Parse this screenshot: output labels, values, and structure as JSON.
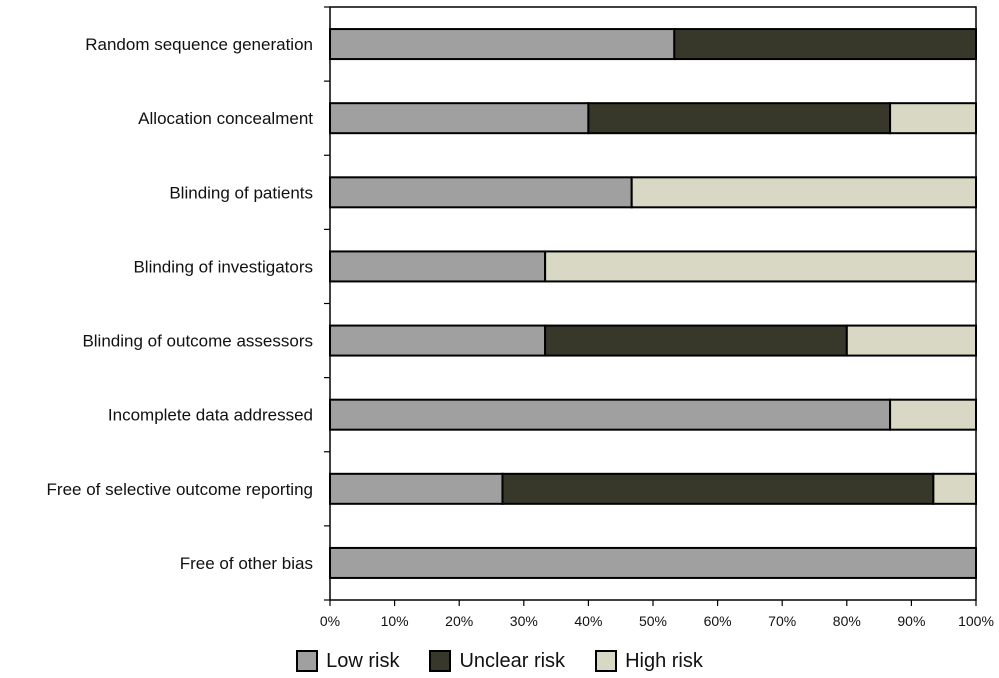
{
  "chart_data": {
    "type": "bar",
    "orientation": "horizontal",
    "stacked": true,
    "categories": [
      "Random sequence generation",
      "Allocation concealment",
      "Blinding of patients",
      "Blinding of investigators",
      "Blinding of outcome assessors",
      "Incomplete data addressed",
      "Free of selective outcome reporting",
      "Free of other bias"
    ],
    "series": [
      {
        "name": "Low risk",
        "color": "#a0a0a0",
        "values": [
          53.3,
          40.0,
          46.7,
          33.3,
          33.3,
          86.7,
          26.7,
          100.0
        ]
      },
      {
        "name": "Unclear risk",
        "color": "#38382a",
        "values": [
          46.7,
          46.7,
          0.0,
          0.0,
          46.7,
          0.0,
          66.7,
          0.0
        ]
      },
      {
        "name": "High risk",
        "color": "#d8d8c4",
        "values": [
          0.0,
          13.3,
          53.3,
          66.7,
          20.0,
          13.3,
          6.6,
          0.0
        ]
      }
    ],
    "x_ticks": [
      "0%",
      "10%",
      "20%",
      "30%",
      "40%",
      "50%",
      "60%",
      "70%",
      "80%",
      "90%",
      "100%"
    ],
    "xlim": [
      0,
      100
    ],
    "grid": false,
    "legend_position": "bottom",
    "title": "",
    "xlabel": "",
    "ylabel": ""
  }
}
